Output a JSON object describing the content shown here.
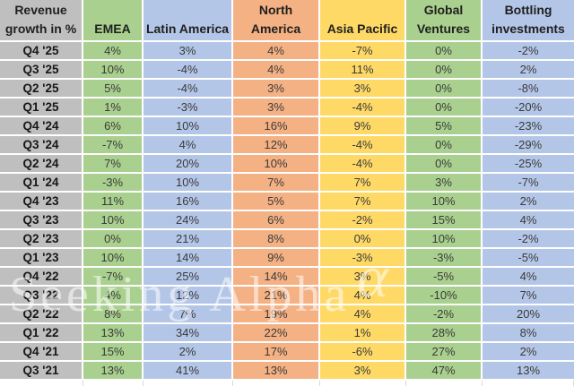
{
  "title": "Revenue growth in %",
  "watermark": {
    "text": "Seeking Alpha",
    "alpha": "α"
  },
  "colors": {
    "header_label_bg": "#BFBFBF",
    "green": "#A9D08E",
    "blue": "#B4C6E7",
    "orange": "#F4B183",
    "yellow": "#FFD966",
    "grid_line": "#FFFFFF",
    "header_text": "#1F1F1F",
    "value_text": "#3A3A3A"
  },
  "chart_data": {
    "type": "table",
    "title": "Revenue growth in %",
    "corner_label": "Revenue growth in %",
    "columns": [
      {
        "label": "EMEA",
        "color_key": "green"
      },
      {
        "label": "Latin America",
        "color_key": "blue"
      },
      {
        "label": "North America",
        "color_key": "orange"
      },
      {
        "label": "Asia Pacific",
        "color_key": "yellow"
      },
      {
        "label": "Global Ventures",
        "color_key": "green"
      },
      {
        "label": "Bottling investments",
        "color_key": "blue"
      }
    ],
    "rows": [
      {
        "label": "Q4 '25",
        "values": [
          "4%",
          "3%",
          "4%",
          "-7%",
          "0%",
          "-2%"
        ]
      },
      {
        "label": "Q3 '25",
        "values": [
          "10%",
          "-4%",
          "4%",
          "11%",
          "0%",
          "2%"
        ]
      },
      {
        "label": "Q2 '25",
        "values": [
          "5%",
          "-4%",
          "3%",
          "3%",
          "0%",
          "-8%"
        ]
      },
      {
        "label": "Q1 '25",
        "values": [
          "1%",
          "-3%",
          "3%",
          "-4%",
          "0%",
          "-20%"
        ]
      },
      {
        "label": "Q4 '24",
        "values": [
          "6%",
          "10%",
          "16%",
          "9%",
          "5%",
          "-23%"
        ]
      },
      {
        "label": "Q3 '24",
        "values": [
          "-7%",
          "4%",
          "12%",
          "-4%",
          "0%",
          "-29%"
        ]
      },
      {
        "label": "Q2 '24",
        "values": [
          "7%",
          "20%",
          "10%",
          "-4%",
          "0%",
          "-25%"
        ]
      },
      {
        "label": "Q1 '24",
        "values": [
          "-3%",
          "10%",
          "7%",
          "7%",
          "3%",
          "-7%"
        ]
      },
      {
        "label": "Q4 '23",
        "values": [
          "11%",
          "16%",
          "5%",
          "7%",
          "10%",
          "2%"
        ]
      },
      {
        "label": "Q3 '23",
        "values": [
          "10%",
          "24%",
          "6%",
          "-2%",
          "15%",
          "4%"
        ]
      },
      {
        "label": "Q2 '23",
        "values": [
          "0%",
          "21%",
          "8%",
          "0%",
          "10%",
          "-2%"
        ]
      },
      {
        "label": "Q1 '23",
        "values": [
          "10%",
          "14%",
          "9%",
          "-3%",
          "-3%",
          "-5%"
        ]
      },
      {
        "label": "Q4 '22",
        "values": [
          "-7%",
          "25%",
          "14%",
          "3%",
          "-5%",
          "4%"
        ]
      },
      {
        "label": "Q3 '22",
        "values": [
          "4%",
          "12%",
          "21%",
          "4%",
          "-10%",
          "7%"
        ]
      },
      {
        "label": "Q2 '22",
        "values": [
          "8%",
          "7%",
          "19%",
          "4%",
          "-2%",
          "20%"
        ]
      },
      {
        "label": "Q1 '22",
        "values": [
          "13%",
          "34%",
          "22%",
          "1%",
          "28%",
          "8%"
        ]
      },
      {
        "label": "Q4 '21",
        "values": [
          "15%",
          "2%",
          "17%",
          "-6%",
          "27%",
          "2%"
        ]
      },
      {
        "label": "Q3 '21",
        "values": [
          "13%",
          "41%",
          "13%",
          "3%",
          "47%",
          "13%"
        ]
      }
    ]
  }
}
